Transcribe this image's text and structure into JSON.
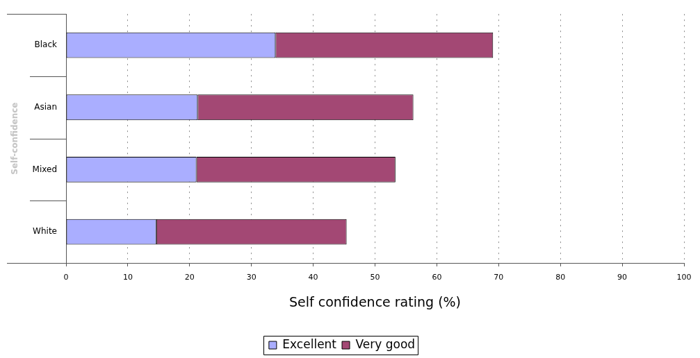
{
  "chart_data": {
    "type": "bar",
    "orientation": "horizontal",
    "stacked": true,
    "ylabel": "Self-confidence",
    "xlabel": "Self confidence rating (%)",
    "categories": [
      "Black",
      "Asian",
      "Mixed",
      "White"
    ],
    "series": [
      {
        "name": "Excellent",
        "color": "#aaaeff",
        "values": [
          33.9,
          21.3,
          21.1,
          14.6
        ]
      },
      {
        "name": "Very good",
        "color": "#a34874",
        "values": [
          35.2,
          34.9,
          32.2,
          30.8
        ]
      }
    ],
    "xlim": [
      0,
      100
    ],
    "xticks": [
      0,
      10,
      20,
      30,
      40,
      50,
      60,
      70,
      80,
      90,
      100
    ],
    "grid": "x",
    "legend": "bottom"
  }
}
